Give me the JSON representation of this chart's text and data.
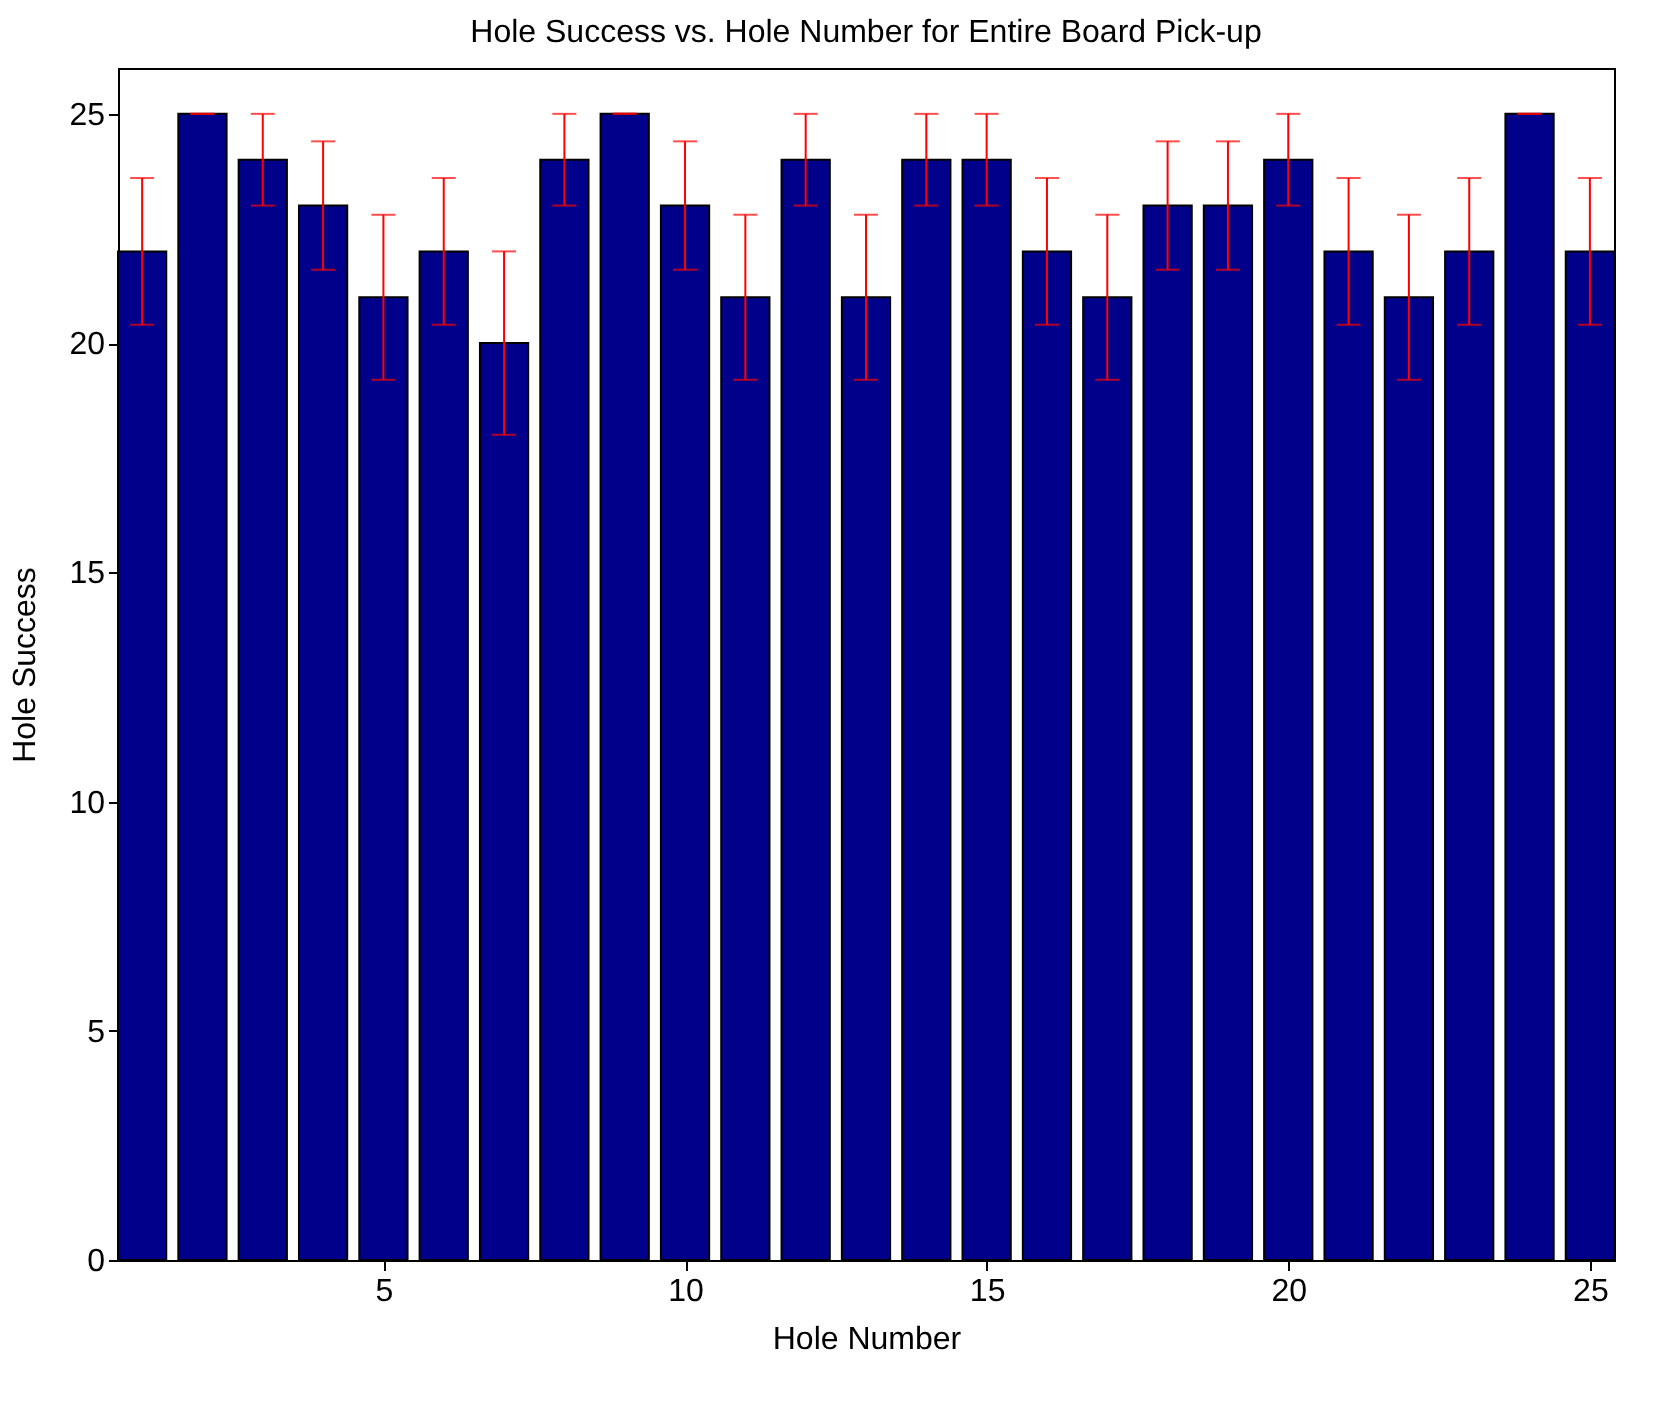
{
  "chart_data": {
    "type": "bar",
    "title": "Hole Success vs. Hole Number for Entire Board Pick-up",
    "xlabel": "Hole Number",
    "ylabel": "Hole Success",
    "x": [
      1,
      2,
      3,
      4,
      5,
      6,
      7,
      8,
      9,
      10,
      11,
      12,
      13,
      14,
      15,
      16,
      17,
      18,
      19,
      20,
      21,
      22,
      23,
      24,
      25
    ],
    "values": [
      22,
      25,
      24,
      23,
      21,
      22,
      20,
      24,
      25,
      23,
      21,
      24,
      21,
      24,
      24,
      22,
      21,
      23,
      23,
      24,
      22,
      21,
      22,
      25,
      22
    ],
    "errors": [
      1.6,
      0,
      1,
      1.4,
      1.8,
      1.6,
      2,
      1,
      0,
      1.4,
      1.8,
      1,
      1.8,
      1,
      1,
      1.6,
      1.8,
      1.4,
      1.4,
      1,
      1.6,
      1.8,
      1.6,
      0,
      1.6
    ],
    "color": "#00008b",
    "xlim": [
      0.6,
      25.4
    ],
    "xticks": [
      5,
      10,
      15,
      20,
      25
    ],
    "ylim": [
      0,
      26
    ],
    "yticks": [
      0,
      5,
      10,
      15,
      20,
      25
    ],
    "grid": false
  }
}
